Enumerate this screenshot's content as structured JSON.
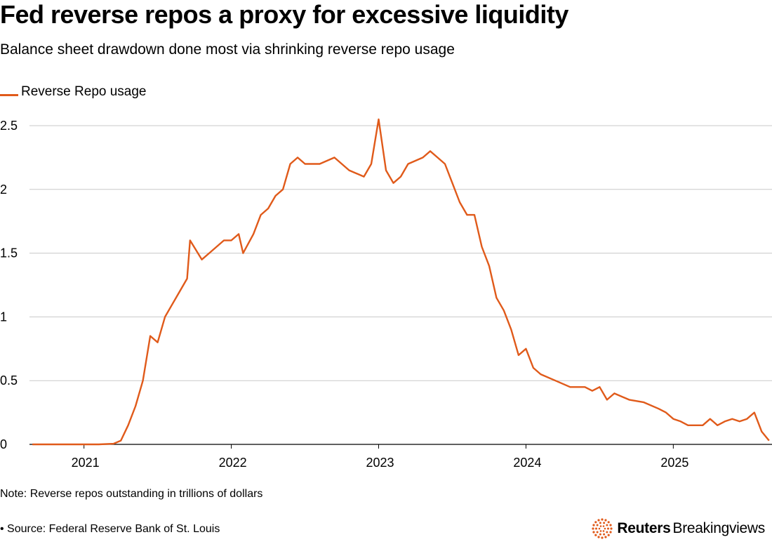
{
  "header": {
    "title": "Fed reverse repos a proxy for excessive liquidity",
    "subtitle": "Balance sheet drawdown done most via shrinking reverse repo usage"
  },
  "footer": {
    "note": "Note: Reverse repos outstanding in trillions of dollars",
    "source": "• Source: Federal Reserve Bank of St. Louis",
    "brand_primary": "Reuters",
    "brand_secondary": "Breakingviews"
  },
  "colors": {
    "series": "#e05a1a",
    "grid": "#c8c8c8",
    "axis": "#000000"
  },
  "icons": {
    "brand": "reuters-dot-ring-icon"
  },
  "chart_data": {
    "type": "line",
    "title": "Fed reverse repos a proxy for excessive liquidity",
    "subtitle": "Balance sheet drawdown done most via shrinking reverse repo usage",
    "xlabel": "",
    "ylabel": "",
    "ylim": [
      0,
      2.5
    ],
    "xlim": [
      2020.63,
      2025.67
    ],
    "yticks": [
      0,
      0.5,
      1,
      1.5,
      2,
      2.5
    ],
    "ytick_labels": [
      "0",
      "0.5",
      "1",
      "1.5",
      "2",
      "2.5"
    ],
    "xticks": [
      2021,
      2022,
      2023,
      2024,
      2025
    ],
    "xtick_labels": [
      "2021",
      "2022",
      "2023",
      "2024",
      "2025"
    ],
    "grid": true,
    "legend_position": "top-left",
    "series": [
      {
        "name": "Reverse Repo usage",
        "x": [
          2020.65,
          2020.8,
          2020.95,
          2021.0,
          2021.1,
          2021.2,
          2021.25,
          2021.3,
          2021.35,
          2021.4,
          2021.45,
          2021.5,
          2021.55,
          2021.6,
          2021.7,
          2021.72,
          2021.8,
          2021.85,
          2021.9,
          2021.95,
          2022.0,
          2022.05,
          2022.08,
          2022.15,
          2022.2,
          2022.25,
          2022.3,
          2022.35,
          2022.4,
          2022.45,
          2022.5,
          2022.6,
          2022.7,
          2022.75,
          2022.8,
          2022.9,
          2022.95,
          2023.0,
          2023.05,
          2023.1,
          2023.15,
          2023.2,
          2023.3,
          2023.35,
          2023.4,
          2023.45,
          2023.5,
          2023.55,
          2023.6,
          2023.65,
          2023.7,
          2023.75,
          2023.8,
          2023.85,
          2023.9,
          2023.95,
          2024.0,
          2024.05,
          2024.1,
          2024.2,
          2024.3,
          2024.4,
          2024.45,
          2024.5,
          2024.55,
          2024.6,
          2024.7,
          2024.8,
          2024.9,
          2024.95,
          2025.0,
          2025.05,
          2025.1,
          2025.2,
          2025.25,
          2025.3,
          2025.35,
          2025.4,
          2025.45,
          2025.5,
          2025.55,
          2025.6,
          2025.65
        ],
        "values": [
          0,
          0,
          0,
          0,
          0,
          0.005,
          0.03,
          0.15,
          0.3,
          0.5,
          0.85,
          0.8,
          1.0,
          1.1,
          1.3,
          1.6,
          1.45,
          1.5,
          1.55,
          1.6,
          1.6,
          1.65,
          1.5,
          1.65,
          1.8,
          1.85,
          1.95,
          2.0,
          2.2,
          2.25,
          2.2,
          2.2,
          2.25,
          2.2,
          2.15,
          2.1,
          2.2,
          2.55,
          2.15,
          2.05,
          2.1,
          2.2,
          2.25,
          2.3,
          2.25,
          2.2,
          2.05,
          1.9,
          1.8,
          1.8,
          1.55,
          1.4,
          1.15,
          1.05,
          0.9,
          0.7,
          0.75,
          0.6,
          0.55,
          0.5,
          0.45,
          0.45,
          0.42,
          0.45,
          0.35,
          0.4,
          0.35,
          0.33,
          0.28,
          0.25,
          0.2,
          0.18,
          0.15,
          0.15,
          0.2,
          0.15,
          0.18,
          0.2,
          0.18,
          0.2,
          0.25,
          0.1,
          0.03
        ]
      }
    ]
  }
}
